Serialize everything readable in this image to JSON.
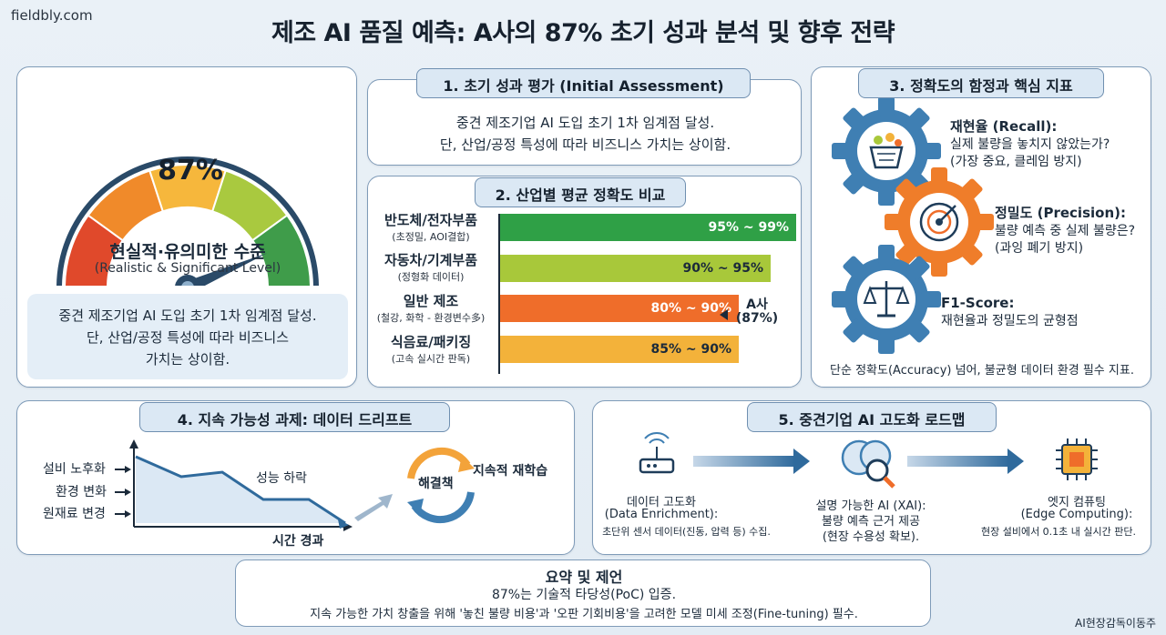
{
  "header": {
    "site": "fieldbly.com",
    "title": "제조 AI 품질 예측: A사의 87% 초기 성과 분석 및 향후 전략"
  },
  "gauge": {
    "value_text": "87%",
    "value": 87,
    "max": 100,
    "label": "현실적·유의미한 수준",
    "label_en": "(Realistic & Significant Level)",
    "note": [
      "중견 제조기업 AI 도입 초기 1차 임계점 달성.",
      "단, 산업/공정 특성에 따라 비즈니스",
      "가치는 상이함."
    ]
  },
  "assessment": {
    "tab": "1. 초기 성과 평가 (Initial Assessment)",
    "lines": [
      "중견 제조기업 AI 도입 초기 1차 임계점 달성.",
      "단, 산업/공정 특성에 따라 비즈니스 가치는 상이함."
    ]
  },
  "industry": {
    "tab": "2. 산업별 평균 정확도 비교",
    "rows": [
      {
        "name": "반도체/전자부품",
        "sub": "(초정밀, AOI결합)",
        "range": "95% ~ 99%",
        "low": 95,
        "high": 99
      },
      {
        "name": "자동차/기계부품",
        "sub": "(정형화 데이터)",
        "range": "90% ~ 95%",
        "low": 90,
        "high": 95
      },
      {
        "name": "일반 제조",
        "sub": "(철강, 화학 - 환경변수多)",
        "range": "80% ~ 90%",
        "low": 80,
        "high": 90
      },
      {
        "name": "식음료/패키징",
        "sub": "(고속 실시간 판독)",
        "range": "85% ~ 90%",
        "low": 85,
        "high": 90
      }
    ],
    "marker_label": "A사",
    "marker_value": "(87%)"
  },
  "chart_data": {
    "type": "bar",
    "title": "2. 산업별 평균 정확도 비교",
    "categories": [
      "반도체/전자부품",
      "자동차/기계부품",
      "일반 제조",
      "식음료/패키징"
    ],
    "series": [
      {
        "name": "",
        "values": [
          [
            95,
            99
          ],
          [
            90,
            95
          ],
          [
            80,
            90
          ],
          [
            85,
            90
          ]
        ]
      }
    ],
    "annotations": [
      {
        "label": "A사 (87%)",
        "category": "일반 제조",
        "value": 87
      }
    ]
  },
  "metrics": {
    "tab": "3. 정확도의 함정과 핵심 지표",
    "items": [
      {
        "title": "재현율 (Recall):",
        "lines": [
          "실제 불량을 놓치지 않았는가?",
          "(가장 중요, 클레임 방지)"
        ],
        "icon": "basket-icon"
      },
      {
        "title": "정밀도 (Precision):",
        "lines": [
          "불량 예측 중 실제 불량은?",
          "(과잉 폐기 방지)"
        ],
        "icon": "target-icon"
      },
      {
        "title": "F1-Score:",
        "lines": [
          "재현율과 정밀도의 균형점"
        ],
        "icon": "scale-icon"
      }
    ],
    "footer": "단순 정확도(Accuracy) 넘어, 불균형 데이터 환경 필수 지표."
  },
  "drift": {
    "tab": "4. 지속 가능성 과제: 데이터 드리프트",
    "causes": [
      "설비 노후화",
      "환경 변화",
      "원재료 변경"
    ],
    "decline_label": "성능 하락",
    "xlabel": "시간 경과",
    "solution": "해결책",
    "retrain": "지속적 재학습"
  },
  "roadmap": {
    "tab": "5. 중견기업 AI 고도화 로드맵",
    "steps": [
      {
        "title": "데이터 고도화",
        "title2": "(Data Enrichment):",
        "desc": "초단위 센서 데이터(진동, 압력 등) 수집.",
        "icon": "router-icon"
      },
      {
        "title": "설명 가능한 AI (XAI):",
        "title2": "불량 예측 근거 제공",
        "desc": "(현장 수용성 확보).",
        "icon": "brain-magnifier-icon"
      },
      {
        "title": "엣지 컴퓨팅",
        "title2": "(Edge Computing):",
        "desc": "현장 설비에서 0.1초 내 실시간 판단.",
        "icon": "chip-icon"
      }
    ]
  },
  "summary": {
    "title": "요약 및 제언",
    "line1": "87%는 기술적 타당성(PoC) 입증.",
    "line2": "지속 가능한 가치 창출을 위해 '놓친 불량 비용'과 '오판 기회비용'을 고려한 모델 미세 조정(Fine-tuning) 필수."
  },
  "credit": "AI현장감독이동주",
  "colors": {
    "green": "#2fa046",
    "lime": "#a8c83a",
    "orange": "#ef6d2a",
    "yellow": "#f3b23a",
    "navy": "#1f3d5a",
    "gauge_red": "#e0492b",
    "gauge_orange": "#f08a2a",
    "gauge_yellow": "#f6b73c",
    "gauge_lime": "#a9c93f",
    "gauge_green": "#3f9c4a"
  }
}
